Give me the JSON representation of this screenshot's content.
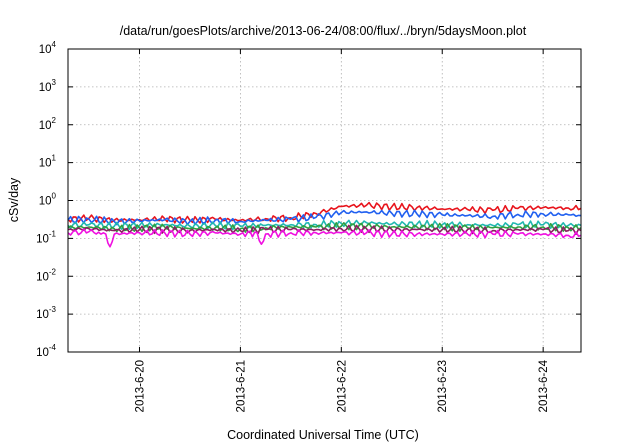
{
  "chart_data": {
    "type": "line",
    "title": "/data/run/goesPlots/archive/2013-06-24/08:00/flux/../bryn/5daysMoon.plot",
    "xlabel": "Coordinated Universal Time (UTC)",
    "ylabel": "cSv/day",
    "yscale": "log",
    "ylim": [
      0.0001,
      10000
    ],
    "y_tick_labels": [
      {
        "value": 0.0001,
        "base": "10",
        "exp": "-4"
      },
      {
        "value": 0.001,
        "base": "10",
        "exp": "-3"
      },
      {
        "value": 0.01,
        "base": "10",
        "exp": "-2"
      },
      {
        "value": 0.1,
        "base": "10",
        "exp": "-1"
      },
      {
        "value": 1,
        "base": "10",
        "exp": "0"
      },
      {
        "value": 10,
        "base": "10",
        "exp": "1"
      },
      {
        "value": 100,
        "base": "10",
        "exp": "2"
      },
      {
        "value": 1000,
        "base": "10",
        "exp": "3"
      },
      {
        "value": 10000,
        "base": "10",
        "exp": "4"
      }
    ],
    "xlim": [
      "2013-06-19T07:00",
      "2013-06-24T09:00"
    ],
    "x_tick_labels": [
      {
        "value": "2013-06-20T00:00",
        "label": "2013-6-20"
      },
      {
        "value": "2013-06-21T00:00",
        "label": "2013-6-21"
      },
      {
        "value": "2013-06-22T00:00",
        "label": "2013-6-22"
      },
      {
        "value": "2013-06-23T00:00",
        "label": "2013-6-23"
      },
      {
        "value": "2013-06-24T00:00",
        "label": "2013-6-24"
      }
    ],
    "grid": true,
    "legend": "none",
    "series": [
      {
        "color": "#e8141c",
        "points": [
          [
            "2013-06-19T07:00",
            0.32
          ],
          [
            "2013-06-19T12:00",
            0.34
          ],
          [
            "2013-06-19T18:00",
            0.3
          ],
          [
            "2013-06-20T00:00",
            0.31
          ],
          [
            "2013-06-20T06:00",
            0.33
          ],
          [
            "2013-06-20T12:00",
            0.3
          ],
          [
            "2013-06-20T18:00",
            0.32
          ],
          [
            "2013-06-21T00:00",
            0.3
          ],
          [
            "2013-06-21T06:00",
            0.33
          ],
          [
            "2013-06-21T12:00",
            0.35
          ],
          [
            "2013-06-21T18:00",
            0.45
          ],
          [
            "2013-06-22T00:00",
            0.7
          ],
          [
            "2013-06-22T06:00",
            0.75
          ],
          [
            "2013-06-22T12:00",
            0.68
          ],
          [
            "2013-06-22T18:00",
            0.65
          ],
          [
            "2013-06-23T00:00",
            0.6
          ],
          [
            "2013-06-23T06:00",
            0.58
          ],
          [
            "2013-06-23T12:00",
            0.55
          ],
          [
            "2013-06-23T18:00",
            0.62
          ],
          [
            "2013-06-24T00:00",
            0.65
          ],
          [
            "2013-06-24T06:00",
            0.63
          ],
          [
            "2013-06-24T09:00",
            0.62
          ]
        ]
      },
      {
        "color": "#2060f0",
        "points": [
          [
            "2013-06-19T07:00",
            0.3
          ],
          [
            "2013-06-19T12:00",
            0.32
          ],
          [
            "2013-06-19T18:00",
            0.28
          ],
          [
            "2013-06-20T00:00",
            0.29
          ],
          [
            "2013-06-20T06:00",
            0.31
          ],
          [
            "2013-06-20T12:00",
            0.28
          ],
          [
            "2013-06-20T18:00",
            0.3
          ],
          [
            "2013-06-21T00:00",
            0.28
          ],
          [
            "2013-06-21T06:00",
            0.3
          ],
          [
            "2013-06-21T12:00",
            0.32
          ],
          [
            "2013-06-21T18:00",
            0.36
          ],
          [
            "2013-06-22T00:00",
            0.48
          ],
          [
            "2013-06-22T06:00",
            0.5
          ],
          [
            "2013-06-22T12:00",
            0.46
          ],
          [
            "2013-06-22T18:00",
            0.44
          ],
          [
            "2013-06-23T00:00",
            0.42
          ],
          [
            "2013-06-23T06:00",
            0.4
          ],
          [
            "2013-06-23T12:00",
            0.38
          ],
          [
            "2013-06-23T18:00",
            0.43
          ],
          [
            "2013-06-24T00:00",
            0.44
          ],
          [
            "2013-06-24T06:00",
            0.42
          ],
          [
            "2013-06-24T09:00",
            0.4
          ]
        ]
      },
      {
        "color": "#20b8b0",
        "points": [
          [
            "2013-06-19T07:00",
            0.22
          ],
          [
            "2013-06-19T12:00",
            0.23
          ],
          [
            "2013-06-19T18:00",
            0.21
          ],
          [
            "2013-06-20T00:00",
            0.22
          ],
          [
            "2013-06-20T06:00",
            0.23
          ],
          [
            "2013-06-20T12:00",
            0.21
          ],
          [
            "2013-06-20T18:00",
            0.22
          ],
          [
            "2013-06-21T00:00",
            0.21
          ],
          [
            "2013-06-21T06:00",
            0.22
          ],
          [
            "2013-06-21T12:00",
            0.23
          ],
          [
            "2013-06-21T18:00",
            0.23
          ],
          [
            "2013-06-22T00:00",
            0.25
          ],
          [
            "2013-06-22T06:00",
            0.26
          ],
          [
            "2013-06-22T12:00",
            0.24
          ],
          [
            "2013-06-22T18:00",
            0.24
          ],
          [
            "2013-06-23T00:00",
            0.23
          ],
          [
            "2013-06-23T06:00",
            0.23
          ],
          [
            "2013-06-23T12:00",
            0.22
          ],
          [
            "2013-06-23T18:00",
            0.23
          ],
          [
            "2013-06-24T00:00",
            0.23
          ],
          [
            "2013-06-24T06:00",
            0.22
          ],
          [
            "2013-06-24T09:00",
            0.22
          ]
        ]
      },
      {
        "color": "#30a040",
        "points": [
          [
            "2013-06-19T07:00",
            0.19
          ],
          [
            "2013-06-19T12:00",
            0.2
          ],
          [
            "2013-06-19T18:00",
            0.18
          ],
          [
            "2013-06-20T00:00",
            0.19
          ],
          [
            "2013-06-20T06:00",
            0.2
          ],
          [
            "2013-06-20T12:00",
            0.18
          ],
          [
            "2013-06-20T18:00",
            0.19
          ],
          [
            "2013-06-21T00:00",
            0.18
          ],
          [
            "2013-06-21T06:00",
            0.19
          ],
          [
            "2013-06-21T12:00",
            0.2
          ],
          [
            "2013-06-21T18:00",
            0.2
          ],
          [
            "2013-06-22T00:00",
            0.21
          ],
          [
            "2013-06-22T06:00",
            0.21
          ],
          [
            "2013-06-22T12:00",
            0.2
          ],
          [
            "2013-06-22T18:00",
            0.2
          ],
          [
            "2013-06-23T00:00",
            0.2
          ],
          [
            "2013-06-23T06:00",
            0.19
          ],
          [
            "2013-06-23T12:00",
            0.19
          ],
          [
            "2013-06-23T18:00",
            0.2
          ],
          [
            "2013-06-24T00:00",
            0.2
          ],
          [
            "2013-06-24T06:00",
            0.19
          ],
          [
            "2013-06-24T09:00",
            0.19
          ]
        ]
      },
      {
        "color": "#8a2060",
        "points": [
          [
            "2013-06-19T07:00",
            0.17
          ],
          [
            "2013-06-19T12:00",
            0.18
          ],
          [
            "2013-06-19T18:00",
            0.16
          ],
          [
            "2013-06-20T00:00",
            0.17
          ],
          [
            "2013-06-20T06:00",
            0.17
          ],
          [
            "2013-06-20T12:00",
            0.16
          ],
          [
            "2013-06-20T18:00",
            0.17
          ],
          [
            "2013-06-21T00:00",
            0.16
          ],
          [
            "2013-06-21T06:00",
            0.17
          ],
          [
            "2013-06-21T12:00",
            0.17
          ],
          [
            "2013-06-21T18:00",
            0.17
          ],
          [
            "2013-06-22T00:00",
            0.18
          ],
          [
            "2013-06-22T06:00",
            0.18
          ],
          [
            "2013-06-22T12:00",
            0.17
          ],
          [
            "2013-06-22T18:00",
            0.17
          ],
          [
            "2013-06-23T00:00",
            0.17
          ],
          [
            "2013-06-23T06:00",
            0.17
          ],
          [
            "2013-06-23T12:00",
            0.16
          ],
          [
            "2013-06-23T18:00",
            0.17
          ],
          [
            "2013-06-24T00:00",
            0.17
          ],
          [
            "2013-06-24T06:00",
            0.16
          ],
          [
            "2013-06-24T09:00",
            0.16
          ]
        ]
      },
      {
        "color": "#f010e0",
        "points": [
          [
            "2013-06-19T07:00",
            0.14
          ],
          [
            "2013-06-19T12:00",
            0.15
          ],
          [
            "2013-06-19T16:00",
            0.13
          ],
          [
            "2013-06-19T17:00",
            0.06
          ],
          [
            "2013-06-19T18:00",
            0.13
          ],
          [
            "2013-06-20T00:00",
            0.14
          ],
          [
            "2013-06-20T06:00",
            0.14
          ],
          [
            "2013-06-20T12:00",
            0.13
          ],
          [
            "2013-06-20T18:00",
            0.14
          ],
          [
            "2013-06-21T00:00",
            0.13
          ],
          [
            "2013-06-21T04:00",
            0.14
          ],
          [
            "2013-06-21T05:00",
            0.07
          ],
          [
            "2013-06-21T06:00",
            0.13
          ],
          [
            "2013-06-21T12:00",
            0.14
          ],
          [
            "2013-06-21T18:00",
            0.14
          ],
          [
            "2013-06-22T00:00",
            0.14
          ],
          [
            "2013-06-22T06:00",
            0.14
          ],
          [
            "2013-06-22T12:00",
            0.13
          ],
          [
            "2013-06-22T18:00",
            0.13
          ],
          [
            "2013-06-23T00:00",
            0.13
          ],
          [
            "2013-06-23T06:00",
            0.13
          ],
          [
            "2013-06-23T12:00",
            0.13
          ],
          [
            "2013-06-23T18:00",
            0.13
          ],
          [
            "2013-06-24T00:00",
            0.13
          ],
          [
            "2013-06-24T06:00",
            0.12
          ],
          [
            "2013-06-24T09:00",
            0.12
          ]
        ]
      }
    ]
  }
}
